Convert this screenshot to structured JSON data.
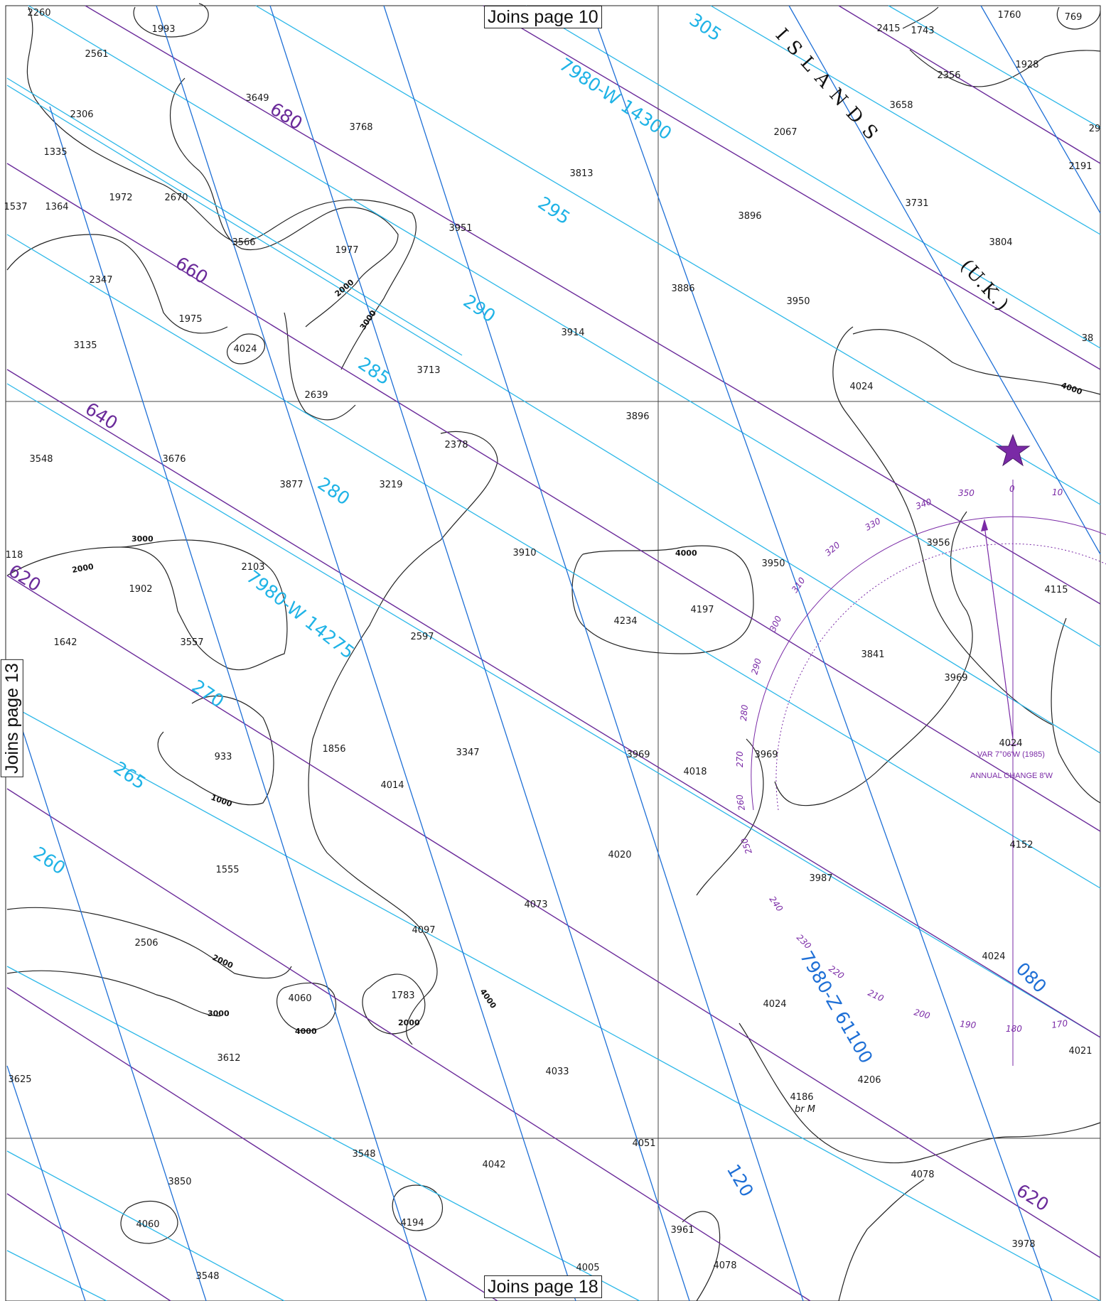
{
  "map": {
    "joins": {
      "top": "Joins page 10",
      "bottom": "Joins page 18",
      "left": "Joins page 13"
    },
    "region_label": "I S L A N D S",
    "region_country": "(U.K.)",
    "lop_labels": {
      "w14300": "7980-W 14300",
      "w14275": "7980-W 14275",
      "z61100": "7980-Z 61100"
    },
    "cyan_rates": [
      "305",
      "295",
      "290",
      "285",
      "280",
      "270",
      "265",
      "260"
    ],
    "purple_rates": [
      "680",
      "660",
      "640",
      "620",
      "620"
    ],
    "blue_rates": [
      "080",
      "120"
    ],
    "contour_labels": [
      "2000",
      "3000",
      "4000",
      "1000"
    ],
    "compass": {
      "variation": "VAR 7°06'W (1985)",
      "annual_change": "ANNUAL CHANGE 8'W",
      "degree_labels": [
        "0",
        "10",
        "350",
        "340",
        "330",
        "320",
        "310",
        "300",
        "290",
        "280",
        "270",
        "260",
        "250",
        "240",
        "230",
        "220",
        "210",
        "200",
        "190",
        "180",
        "170",
        "080"
      ]
    },
    "bottom_note": "br M",
    "soundings": [
      {
        "v": "2260"
      },
      {
        "v": "1993"
      },
      {
        "v": "2561"
      },
      {
        "v": "2306"
      },
      {
        "v": "1335"
      },
      {
        "v": "1537"
      },
      {
        "v": "1364"
      },
      {
        "v": "1972"
      },
      {
        "v": "2670"
      },
      {
        "v": "3649"
      },
      {
        "v": "3768"
      },
      {
        "v": "3813"
      },
      {
        "v": "2067"
      },
      {
        "v": "3658"
      },
      {
        "v": "2415"
      },
      {
        "v": "1743"
      },
      {
        "v": "1760"
      },
      {
        "v": "769"
      },
      {
        "v": "2356"
      },
      {
        "v": "1928"
      },
      {
        "v": "2191"
      },
      {
        "v": "3731"
      },
      {
        "v": "3804"
      },
      {
        "v": "3896"
      },
      {
        "v": "3951"
      },
      {
        "v": "3566"
      },
      {
        "v": "1977"
      },
      {
        "v": "2347"
      },
      {
        "v": "1975"
      },
      {
        "v": "3135"
      },
      {
        "v": "4024"
      },
      {
        "v": "2639"
      },
      {
        "v": "3713"
      },
      {
        "v": "3914"
      },
      {
        "v": "3886"
      },
      {
        "v": "3950"
      },
      {
        "v": "4024"
      },
      {
        "v": "3896"
      },
      {
        "v": "2378"
      },
      {
        "v": "3548"
      },
      {
        "v": "3676"
      },
      {
        "v": "3877"
      },
      {
        "v": "3219"
      },
      {
        "v": "3910"
      },
      {
        "v": "3956"
      },
      {
        "v": "118"
      },
      {
        "v": "2103"
      },
      {
        "v": "1902"
      },
      {
        "v": "4234"
      },
      {
        "v": "4197"
      },
      {
        "v": "3950"
      },
      {
        "v": "4115"
      },
      {
        "v": "1642"
      },
      {
        "v": "3557"
      },
      {
        "v": "2597"
      },
      {
        "v": "3841"
      },
      {
        "v": "3969"
      },
      {
        "v": "933"
      },
      {
        "v": "1856"
      },
      {
        "v": "3347"
      },
      {
        "v": "3969"
      },
      {
        "v": "4018"
      },
      {
        "v": "3969"
      },
      {
        "v": "4024"
      },
      {
        "v": "4014"
      },
      {
        "v": "1555"
      },
      {
        "v": "4020"
      },
      {
        "v": "4152"
      },
      {
        "v": "3987"
      },
      {
        "v": "4073"
      },
      {
        "v": "2506"
      },
      {
        "v": "4097"
      },
      {
        "v": "4024"
      },
      {
        "v": "4060"
      },
      {
        "v": "1783"
      },
      {
        "v": "4024"
      },
      {
        "v": "3612"
      },
      {
        "v": "4033"
      },
      {
        "v": "4021"
      },
      {
        "v": "3625"
      },
      {
        "v": "4206"
      },
      {
        "v": "4186"
      },
      {
        "v": "4051"
      },
      {
        "v": "3548"
      },
      {
        "v": "4042"
      },
      {
        "v": "4078"
      },
      {
        "v": "3850"
      },
      {
        "v": "4060"
      },
      {
        "v": "4194"
      },
      {
        "v": "3961"
      },
      {
        "v": "3978"
      },
      {
        "v": "4005"
      },
      {
        "v": "4078"
      },
      {
        "v": "3548"
      },
      {
        "v": "38"
      },
      {
        "v": "29"
      }
    ]
  }
}
